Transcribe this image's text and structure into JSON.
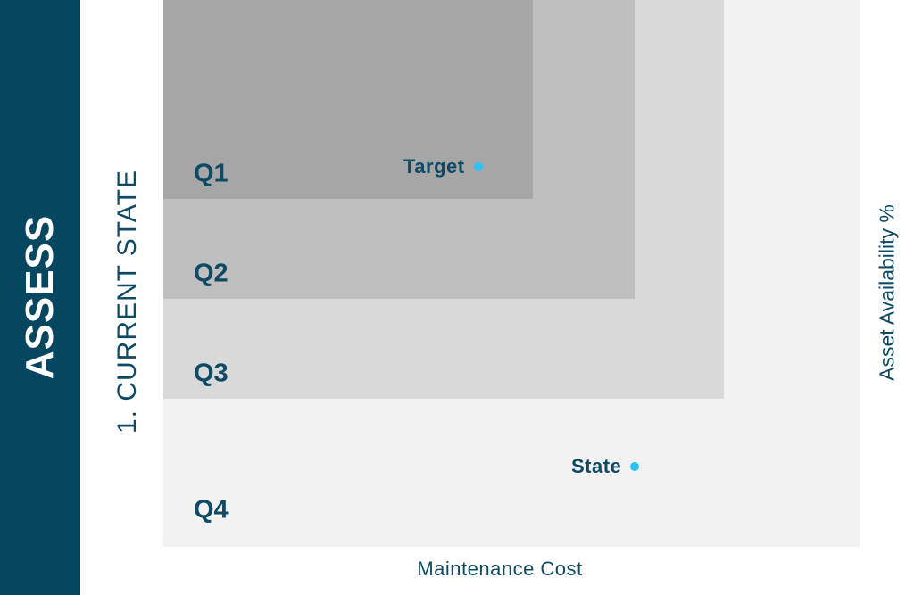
{
  "sidebar": {
    "title": "ASSESS"
  },
  "step": {
    "label": "1. CURRENT STATE"
  },
  "axes": {
    "y_label": "Asset Availability %",
    "x_label": "Maintenance Cost"
  },
  "zones": [
    {
      "label": "Q1",
      "color": "#a6a6a6"
    },
    {
      "label": "Q2",
      "color": "#bfbfbf"
    },
    {
      "label": "Q3",
      "color": "#d9d9d9"
    },
    {
      "label": "Q4",
      "color": "#f2f2f2"
    }
  ],
  "points": {
    "target": {
      "label": "Target",
      "color": "#29c4f5"
    },
    "state": {
      "label": "State",
      "color": "#29c4f5"
    }
  },
  "colors": {
    "sidebar": "#054760",
    "text": "#0e4a64",
    "accent": "#29c4f5"
  }
}
